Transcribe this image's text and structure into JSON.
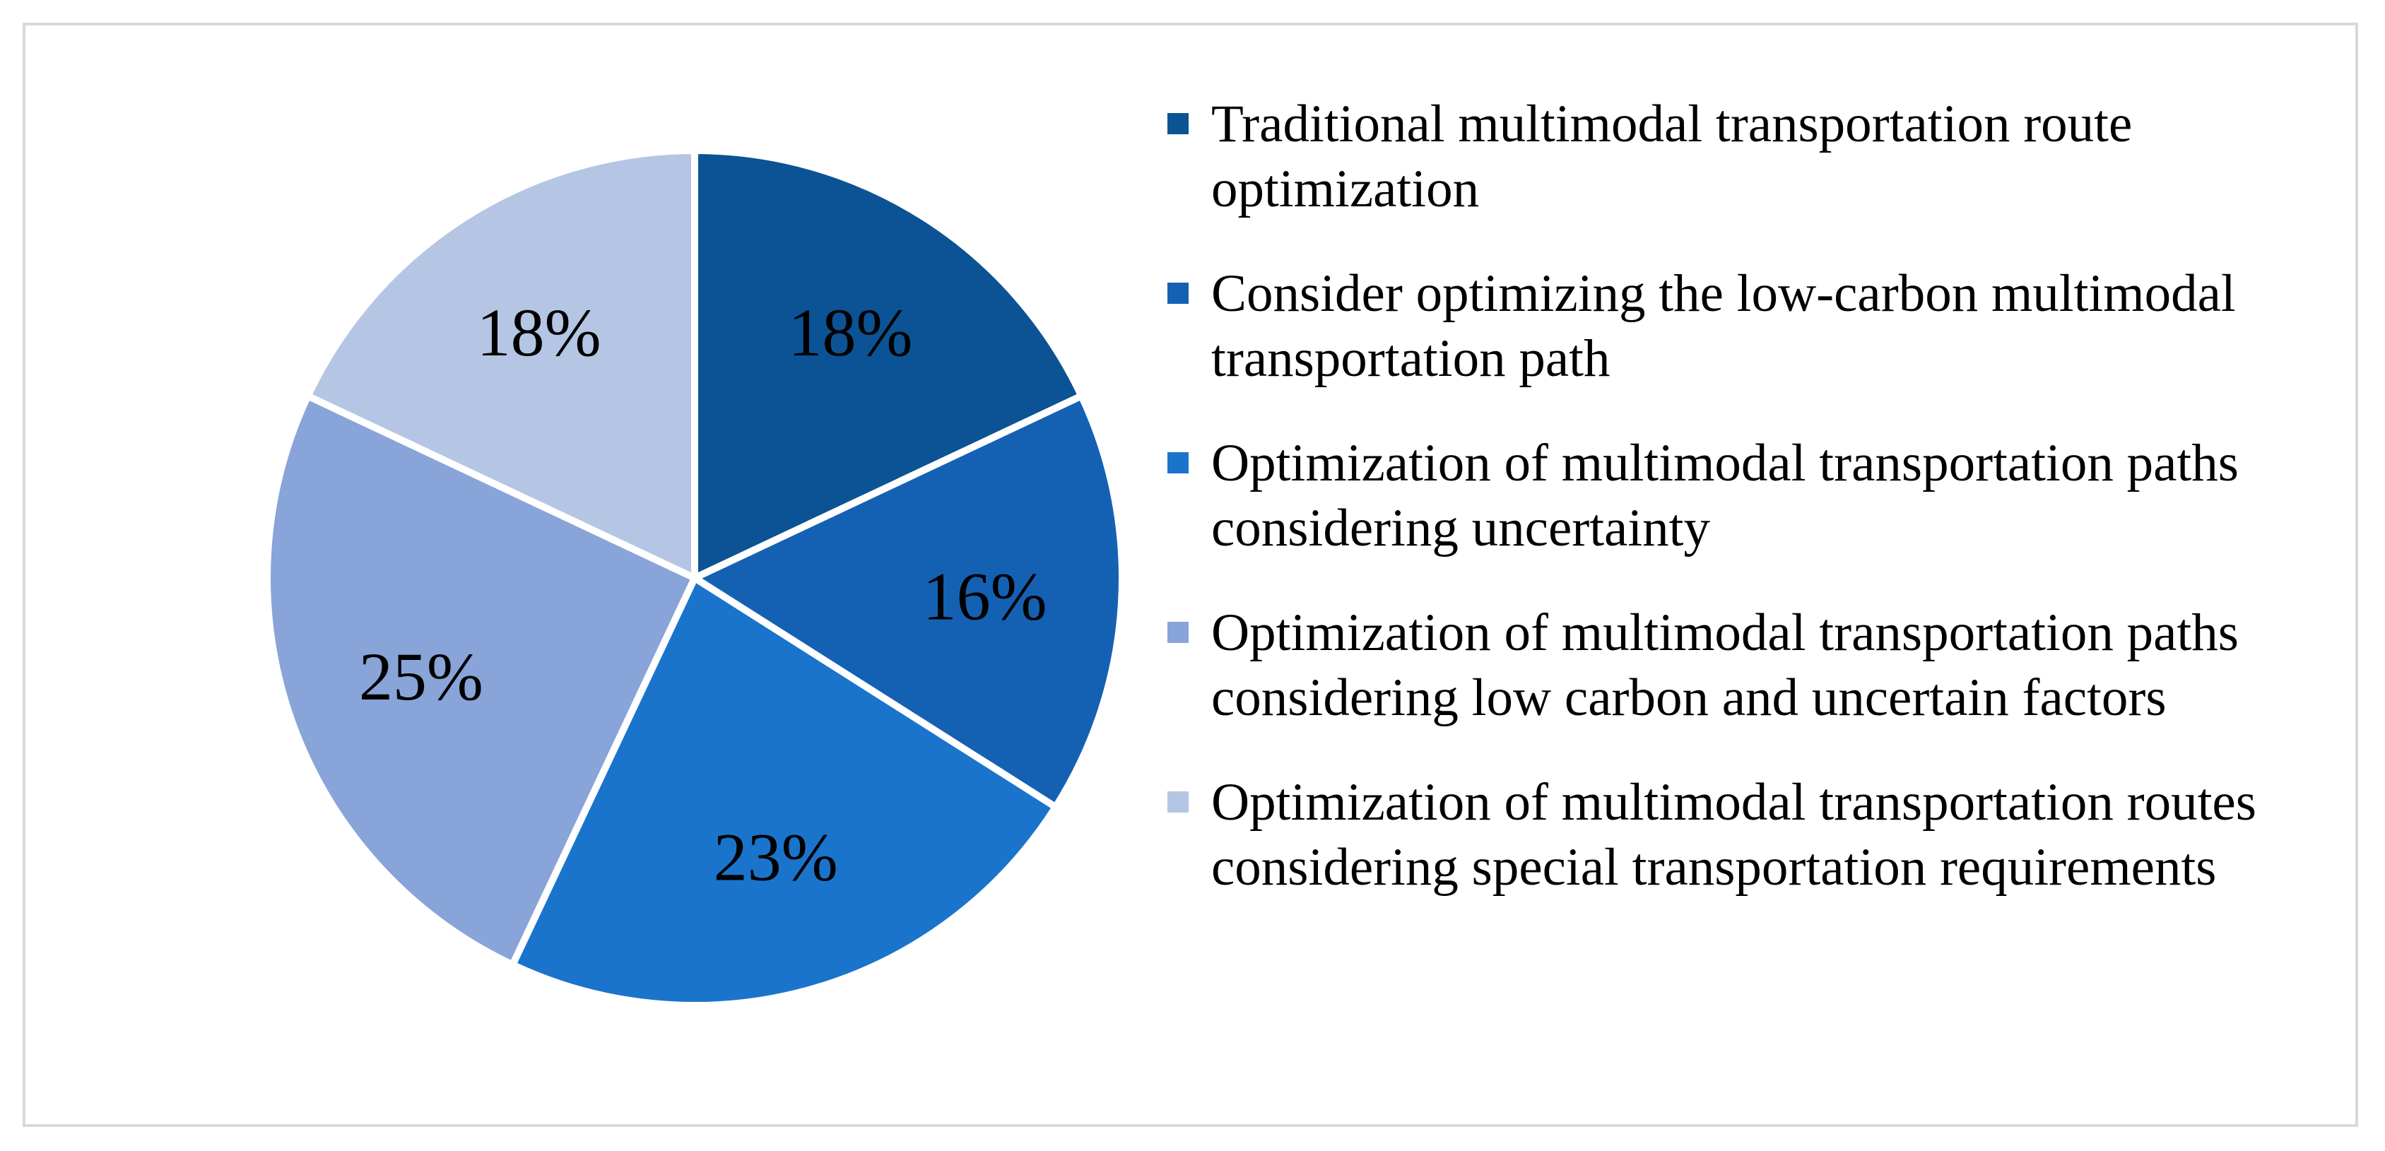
{
  "chart_data": {
    "type": "pie",
    "title": "",
    "slices": [
      {
        "label": "Traditional multimodal transportation route optimization",
        "value": 18,
        "display": "18%",
        "color": "#0b5394"
      },
      {
        "label": "Consider optimizing the low-carbon multimodal transportation path",
        "value": 16,
        "display": "16%",
        "color": "#1461b4"
      },
      {
        "label": "Optimization of multimodal transportation paths considering uncertainty",
        "value": 23,
        "display": "23%",
        "color": "#1a74cc"
      },
      {
        "label": "Optimization of multimodal transportation paths considering low carbon and uncertain factors",
        "value": 25,
        "display": "25%",
        "color": "#88a4d8"
      },
      {
        "label": "Optimization of multimodal transportation routes considering special transportation requirements",
        "value": 18,
        "display": "18%",
        "color": "#b5c5e4"
      }
    ],
    "legend_position": "right",
    "start_angle_deg": 0,
    "direction": "clockwise"
  }
}
